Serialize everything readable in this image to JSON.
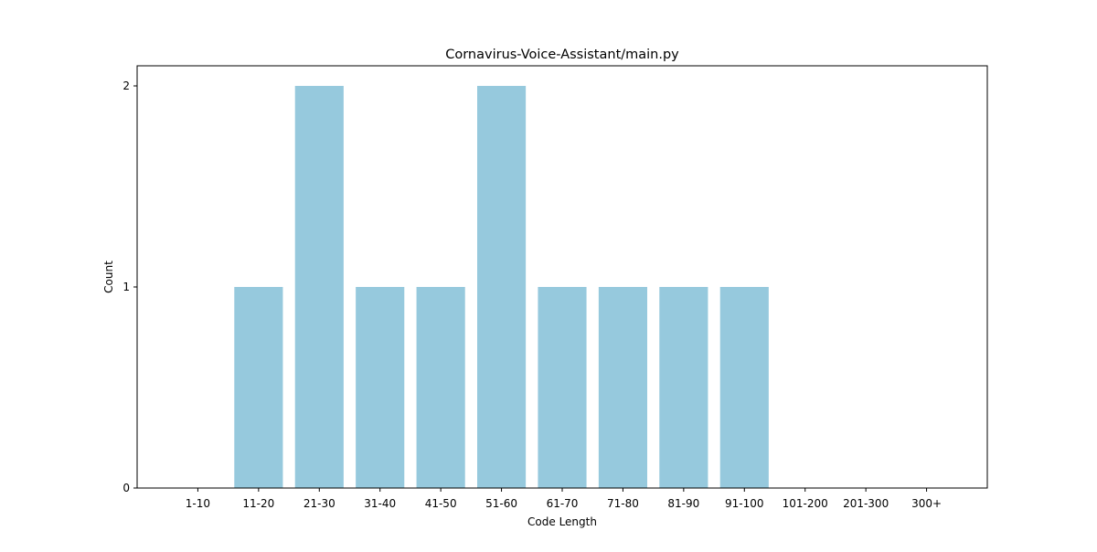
{
  "chart_data": {
    "type": "bar",
    "title": "Cornavirus-Voice-Assistant/main.py",
    "xlabel": "Code Length",
    "ylabel": "Count",
    "categories": [
      "1-10",
      "11-20",
      "21-30",
      "31-40",
      "41-50",
      "51-60",
      "61-70",
      "71-80",
      "81-90",
      "91-100",
      "101-200",
      "201-300",
      "300+"
    ],
    "values": [
      0,
      1,
      2,
      1,
      1,
      2,
      1,
      1,
      1,
      1,
      0,
      0,
      0
    ],
    "ylim": [
      0,
      2.1
    ],
    "yticks": [
      0,
      1,
      2
    ],
    "grid": false,
    "bar_color": "#96c9dd"
  }
}
